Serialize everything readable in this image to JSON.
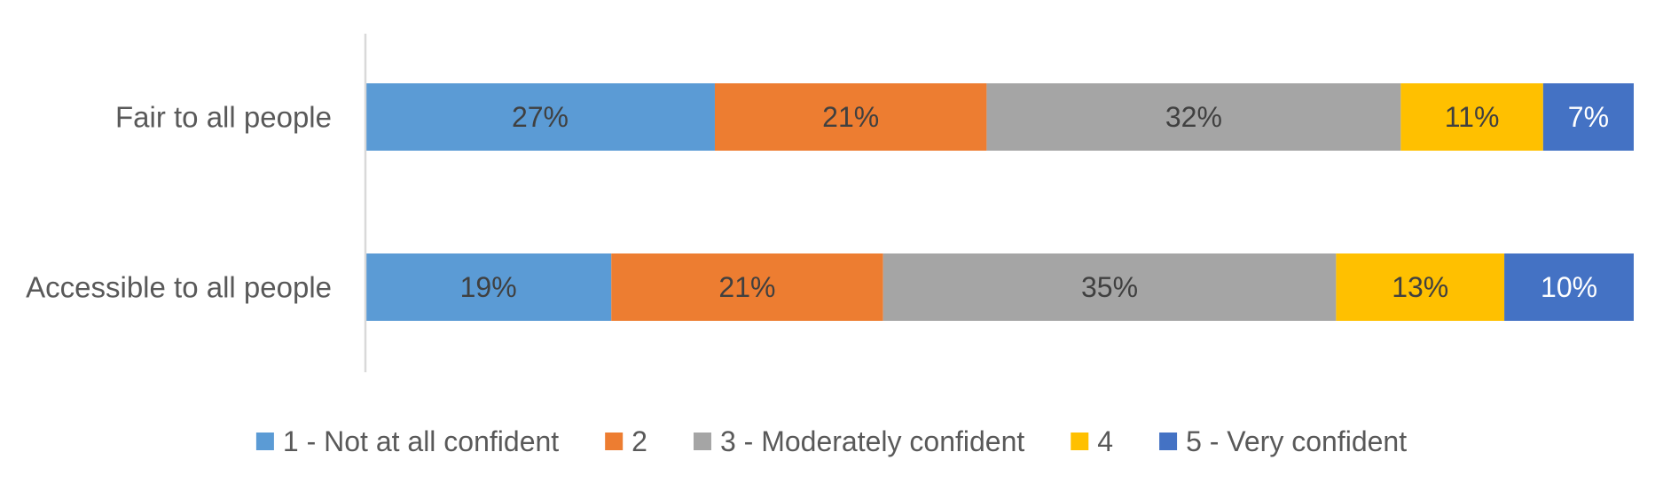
{
  "chart_data": {
    "type": "bar",
    "orientation": "horizontal",
    "stacked": true,
    "percent_stacked": true,
    "title": "",
    "xlabel": "",
    "ylabel": "",
    "xlim": [
      0,
      100
    ],
    "grid": false,
    "legend_position": "bottom",
    "categories": [
      "Fair to all people",
      "Accessible to all people"
    ],
    "series": [
      {
        "name": "1 - Not at all confident",
        "color": "#5B9BD5",
        "label_color": "#404040",
        "values": [
          27,
          19
        ],
        "labels": [
          "27%",
          "19%"
        ]
      },
      {
        "name": "2",
        "color": "#ED7D31",
        "label_color": "#404040",
        "values": [
          21,
          21
        ],
        "labels": [
          "21%",
          "21%"
        ]
      },
      {
        "name": "3 - Moderately confident",
        "color": "#A5A5A5",
        "label_color": "#404040",
        "values": [
          32,
          35
        ],
        "labels": [
          "32%",
          "35%"
        ]
      },
      {
        "name": "4",
        "color": "#FFC000",
        "label_color": "#404040",
        "values": [
          11,
          13
        ],
        "labels": [
          "11%",
          "13%"
        ]
      },
      {
        "name": "5 - Very confident",
        "color": "#4472C4",
        "label_color": "#FFFFFF",
        "values": [
          7,
          10
        ],
        "labels": [
          "7%",
          "10%"
        ]
      }
    ]
  }
}
